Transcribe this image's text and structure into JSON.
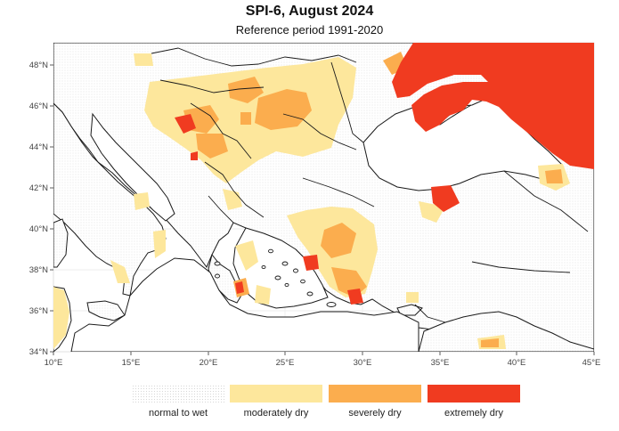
{
  "title": "SPI-6, August 2024",
  "subtitle": "Reference period 1991-2020",
  "x_ticks": [
    "10°E",
    "15°E",
    "20°E",
    "25°E",
    "30°E",
    "35°E",
    "40°E",
    "45°E"
  ],
  "y_ticks": [
    "34°N",
    "36°N",
    "38°N",
    "40°N",
    "42°N",
    "44°N",
    "46°N",
    "48°N"
  ],
  "legend": [
    {
      "label": "normal to wet",
      "color": "#f4f4f4"
    },
    {
      "label": "moderately dry",
      "color": "#fde79c"
    },
    {
      "label": "severely dry",
      "color": "#fbad4e"
    },
    {
      "label": "extremely dry",
      "color": "#f03b20"
    }
  ],
  "colors": {
    "land": "#fdfdfd",
    "sea": "#ffffff",
    "border": "#1a1a1a",
    "grid": "#e6e6e6"
  }
}
